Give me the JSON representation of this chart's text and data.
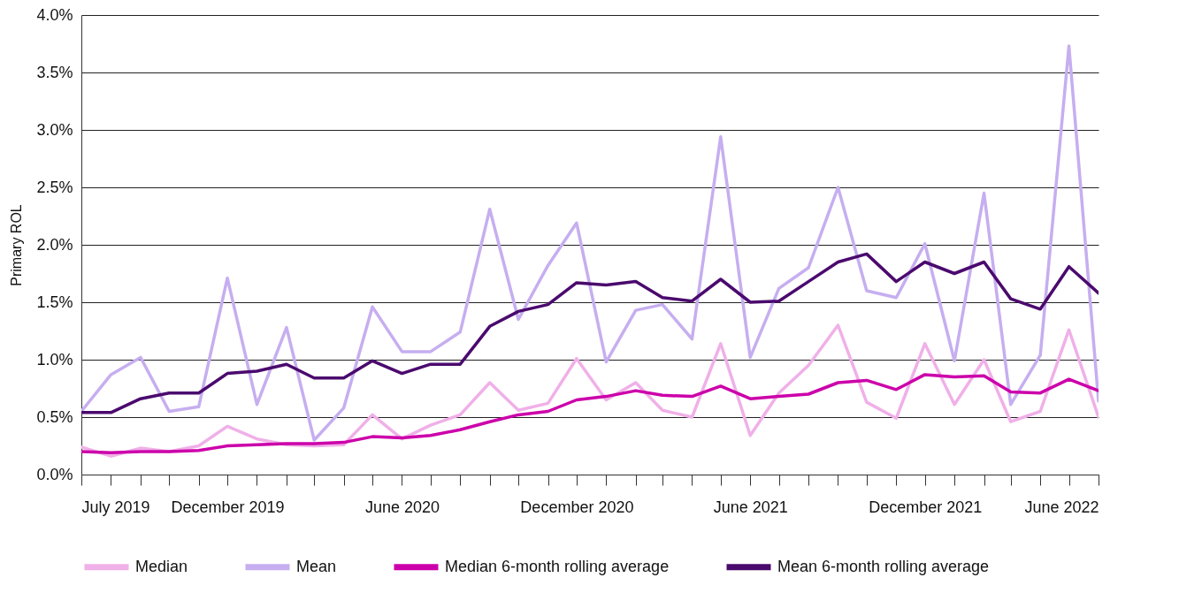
{
  "chart_data": {
    "type": "line",
    "ylabel": "Primary ROL",
    "x": [
      "2019-07",
      "2019-08",
      "2019-09",
      "2019-10",
      "2019-11",
      "2019-12",
      "2020-01",
      "2020-02",
      "2020-03",
      "2020-04",
      "2020-05",
      "2020-06",
      "2020-07",
      "2020-08",
      "2020-09",
      "2020-10",
      "2020-11",
      "2020-12",
      "2021-01",
      "2021-02",
      "2021-03",
      "2021-04",
      "2021-05",
      "2021-06",
      "2021-07",
      "2021-08",
      "2021-09",
      "2021-10",
      "2021-11",
      "2021-12",
      "2022-01",
      "2022-02",
      "2022-03",
      "2022-04",
      "2022-05",
      "2022-06"
    ],
    "series": [
      {
        "name": "Median",
        "color": "#f0b0e8",
        "values": [
          0.24,
          0.16,
          0.23,
          0.2,
          0.25,
          0.42,
          0.31,
          0.26,
          0.25,
          0.26,
          0.52,
          0.31,
          0.43,
          0.52,
          0.8,
          0.56,
          0.62,
          1.01,
          0.65,
          0.8,
          0.56,
          0.5,
          1.14,
          0.34,
          0.71,
          0.95,
          1.3,
          0.63,
          0.49,
          1.14,
          0.61,
          1.0,
          0.46,
          0.55,
          1.26,
          0.5
        ]
      },
      {
        "name": "Mean",
        "color": "#c6aef0",
        "values": [
          0.55,
          0.87,
          1.02,
          0.55,
          0.59,
          1.71,
          0.61,
          1.28,
          0.3,
          0.58,
          1.46,
          1.07,
          1.07,
          1.24,
          2.31,
          1.35,
          1.82,
          2.19,
          0.98,
          1.43,
          1.48,
          1.18,
          2.94,
          1.02,
          1.62,
          1.8,
          2.5,
          1.6,
          1.54,
          2.01,
          0.99,
          2.45,
          0.61,
          1.04,
          3.73,
          0.64
        ]
      },
      {
        "name": "Median 6-month rolling average",
        "color": "#cc00aa",
        "values": [
          0.2,
          0.19,
          0.2,
          0.2,
          0.21,
          0.25,
          0.26,
          0.27,
          0.27,
          0.28,
          0.33,
          0.32,
          0.34,
          0.39,
          0.46,
          0.52,
          0.55,
          0.65,
          0.68,
          0.73,
          0.69,
          0.68,
          0.77,
          0.66,
          0.68,
          0.7,
          0.8,
          0.82,
          0.74,
          0.87,
          0.85,
          0.86,
          0.72,
          0.71,
          0.83,
          0.73
        ]
      },
      {
        "name": "Mean 6-month rolling average",
        "color": "#4b0a6e",
        "values": [
          0.54,
          0.54,
          0.66,
          0.71,
          0.71,
          0.88,
          0.9,
          0.96,
          0.84,
          0.84,
          0.99,
          0.88,
          0.96,
          0.96,
          1.29,
          1.42,
          1.48,
          1.67,
          1.65,
          1.68,
          1.54,
          1.51,
          1.7,
          1.5,
          1.51,
          1.68,
          1.85,
          1.92,
          1.68,
          1.85,
          1.75,
          1.85,
          1.53,
          1.44,
          1.81,
          1.58
        ]
      }
    ],
    "xlim": [
      "2019-07",
      "2022-06"
    ],
    "xticks": [
      {
        "value": "2019-07",
        "label": "July 2019"
      },
      {
        "value": "2019-08",
        "label": null
      },
      {
        "value": "2019-09",
        "label": null
      },
      {
        "value": "2019-10",
        "label": null
      },
      {
        "value": "2019-11",
        "label": null
      },
      {
        "value": "2019-12",
        "label": "December 2019"
      },
      {
        "value": "2020-01",
        "label": null
      },
      {
        "value": "2020-02",
        "label": null
      },
      {
        "value": "2020-03",
        "label": null
      },
      {
        "value": "2020-04",
        "label": null
      },
      {
        "value": "2020-05",
        "label": null
      },
      {
        "value": "2020-06",
        "label": "June 2020"
      },
      {
        "value": "2020-07",
        "label": null
      },
      {
        "value": "2020-08",
        "label": null
      },
      {
        "value": "2020-09",
        "label": null
      },
      {
        "value": "2020-10",
        "label": null
      },
      {
        "value": "2020-11",
        "label": null
      },
      {
        "value": "2020-12",
        "label": "December 2020"
      },
      {
        "value": "2021-01",
        "label": null
      },
      {
        "value": "2021-02",
        "label": null
      },
      {
        "value": "2021-03",
        "label": null
      },
      {
        "value": "2021-04",
        "label": null
      },
      {
        "value": "2021-05",
        "label": null
      },
      {
        "value": "2021-06",
        "label": "June 2021"
      },
      {
        "value": "2021-07",
        "label": null
      },
      {
        "value": "2021-08",
        "label": null
      },
      {
        "value": "2021-09",
        "label": null
      },
      {
        "value": "2021-10",
        "label": null
      },
      {
        "value": "2021-11",
        "label": null
      },
      {
        "value": "2021-12",
        "label": "December 2021"
      },
      {
        "value": "2022-01",
        "label": null
      },
      {
        "value": "2022-02",
        "label": null
      },
      {
        "value": "2022-03",
        "label": null
      },
      {
        "value": "2022-04",
        "label": null
      },
      {
        "value": "2022-05",
        "label": null
      },
      {
        "value": "2022-06",
        "label": "June 2022"
      }
    ],
    "ylim": [
      0,
      4
    ],
    "yticks": [
      {
        "value": 0,
        "label": "0.0%"
      },
      {
        "value": 0.5,
        "label": "0.5%"
      },
      {
        "value": 1,
        "label": "1.0%"
      },
      {
        "value": 1.5,
        "label": "1.5%"
      },
      {
        "value": 2,
        "label": "2.0%"
      },
      {
        "value": 2.5,
        "label": "2.5%"
      },
      {
        "value": 3,
        "label": "3.0%"
      },
      {
        "value": 3.5,
        "label": "3.5%"
      },
      {
        "value": 4,
        "label": "4.0%"
      }
    ],
    "grid": "y",
    "legend": "bottom",
    "line_style": "solid",
    "marker": "none"
  }
}
